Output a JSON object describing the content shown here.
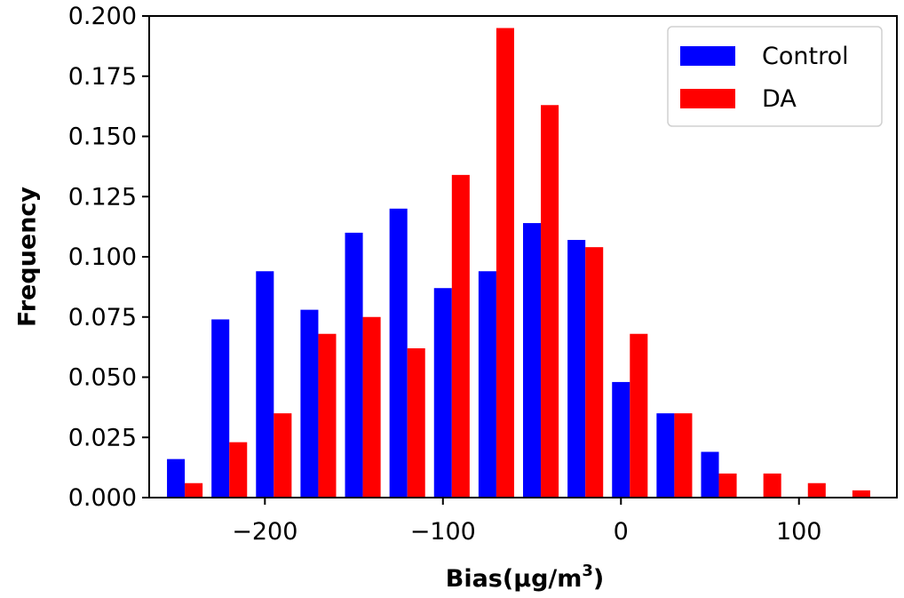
{
  "chart_data": {
    "type": "bar",
    "xlabel": "Bias(μg/m",
    "xlabel_superscript": "3",
    "xlabel_suffix": ")",
    "ylabel": "Frequency",
    "xlim": [
      -265,
      155
    ],
    "ylim": [
      0,
      0.2
    ],
    "xticks": [
      -200,
      -100,
      0,
      100
    ],
    "xtick_labels": [
      "−200",
      "−100",
      "0",
      "100"
    ],
    "yticks": [
      0,
      0.025,
      0.05,
      0.075,
      0.1,
      0.125,
      0.15,
      0.175,
      0.2
    ],
    "ytick_labels": [
      "0.000",
      "0.025",
      "0.050",
      "0.075",
      "0.100",
      "0.125",
      "0.150",
      "0.175",
      "0.200"
    ],
    "bin_centers": [
      -245,
      -220,
      -195,
      -170,
      -145,
      -120,
      -95,
      -70,
      -45,
      -20,
      5,
      30,
      55,
      80,
      105,
      130
    ],
    "bar_width": 10,
    "series": [
      {
        "name": "Control",
        "color": "#0000ff",
        "values": [
          0.016,
          0.074,
          0.094,
          0.078,
          0.11,
          0.12,
          0.087,
          0.094,
          0.114,
          0.107,
          0.048,
          0.035,
          0.019,
          0,
          0,
          0
        ]
      },
      {
        "name": "DA",
        "color": "#ff0000",
        "values": [
          0.006,
          0.023,
          0.035,
          0.068,
          0.075,
          0.062,
          0.134,
          0.195,
          0.163,
          0.104,
          0.068,
          0.035,
          0.01,
          0.01,
          0.006,
          0.003
        ]
      }
    ],
    "legend_position": "top-right",
    "grid": false
  }
}
